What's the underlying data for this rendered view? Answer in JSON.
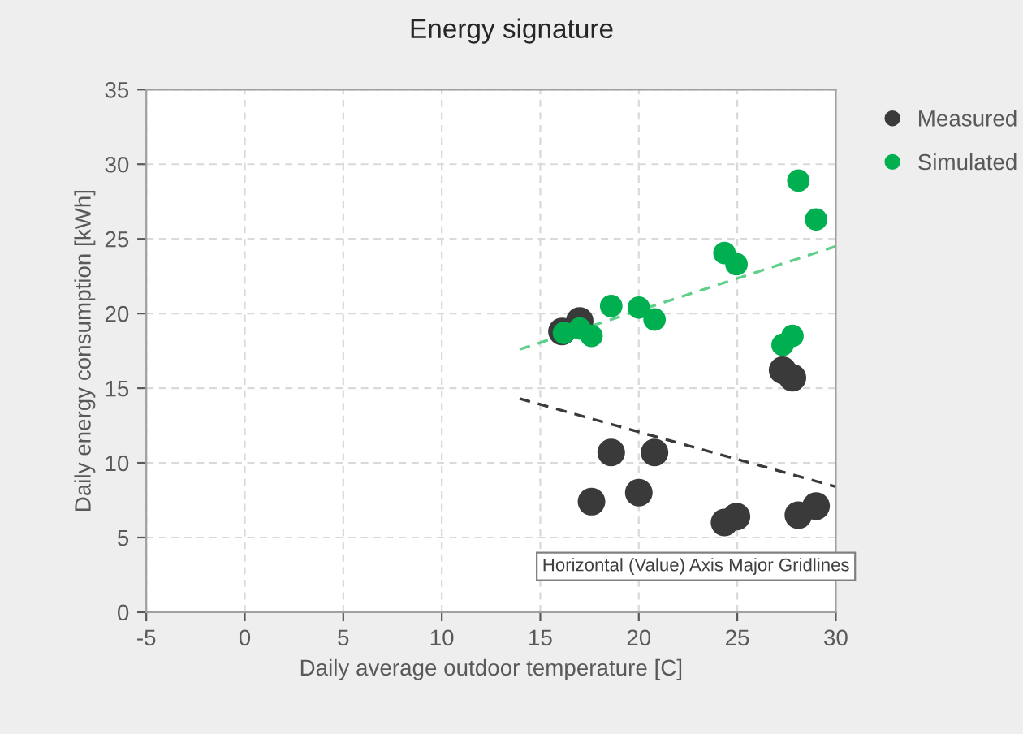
{
  "chart_data": {
    "type": "scatter",
    "title": "Energy signature",
    "xlabel": "Daily average outdoor temperature [C]",
    "ylabel": "Daily energy consumption [kWh]",
    "xlim": [
      -5,
      30
    ],
    "ylim": [
      0,
      35
    ],
    "xticks": [
      -5,
      0,
      5,
      10,
      15,
      20,
      25,
      30
    ],
    "yticks": [
      0,
      5,
      10,
      15,
      20,
      25,
      30,
      35
    ],
    "grid": true,
    "legend": "top right",
    "marker": "circle",
    "annotations": [
      "Horizontal (Value) Axis Major Gridlines"
    ],
    "series": [
      {
        "name": "Measured",
        "color": "#3a3a3a",
        "x": [
          16.1,
          17.0,
          18.6,
          20.8,
          17.6,
          20.0,
          24.35,
          24.96,
          27.3,
          27.8,
          28.1,
          29.0
        ],
        "values": [
          18.8,
          19.5,
          10.7,
          10.7,
          7.4,
          8.0,
          6.0,
          6.4,
          16.2,
          15.7,
          6.5,
          7.1
        ]
      },
      {
        "name": "Simulated",
        "color": "#00b050",
        "x": [
          16.2,
          17.0,
          17.6,
          18.6,
          20.0,
          20.8,
          24.35,
          24.96,
          27.3,
          27.8,
          28.1,
          29.0
        ],
        "values": [
          18.7,
          19.0,
          18.5,
          20.5,
          20.4,
          19.6,
          24.05,
          23.3,
          17.9,
          18.5,
          28.9,
          26.3
        ]
      },
      {
        "type": "line",
        "color": "#3a3a3a",
        "line_style": "dashed",
        "marker": "none",
        "x": [
          13.95,
          30
        ],
        "values": [
          14.3,
          8.4
        ]
      },
      {
        "type": "line",
        "color": "#5fd08a",
        "line_style": "dashed",
        "marker": "none",
        "x": [
          13.95,
          30
        ],
        "values": [
          17.6,
          24.5
        ]
      }
    ]
  }
}
